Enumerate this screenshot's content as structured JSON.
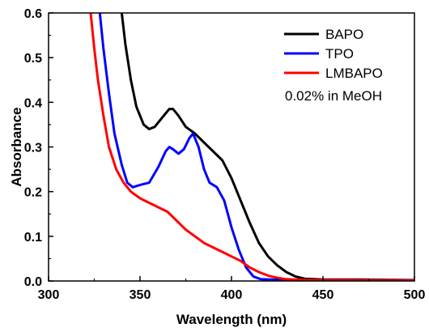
{
  "chart_data": {
    "type": "line",
    "xlabel": "Wavelength (nm)",
    "ylabel": "Absorbance",
    "xlim": [
      300,
      500
    ],
    "ylim": [
      0.0,
      0.6
    ],
    "x_ticks": [
      300,
      350,
      400,
      450,
      500
    ],
    "y_ticks": [
      0.0,
      0.1,
      0.2,
      0.3,
      0.4,
      0.5,
      0.6
    ],
    "x_tick_labels": [
      "300",
      "350",
      "400",
      "450",
      "500"
    ],
    "y_tick_labels": [
      "0.0",
      "0.1",
      "0.2",
      "0.3",
      "0.4",
      "0.5",
      "0.6"
    ],
    "grid": false,
    "legend_position": "top-right",
    "annotation": "0.02% in MeOH",
    "series": [
      {
        "name": "BAPO",
        "color": "#000000",
        "points": [
          [
            340,
            0.6
          ],
          [
            342,
            0.53
          ],
          [
            345,
            0.45
          ],
          [
            348,
            0.39
          ],
          [
            352,
            0.35
          ],
          [
            355,
            0.34
          ],
          [
            358,
            0.345
          ],
          [
            362,
            0.365
          ],
          [
            366,
            0.385
          ],
          [
            368,
            0.385
          ],
          [
            371,
            0.37
          ],
          [
            375,
            0.345
          ],
          [
            380,
            0.33
          ],
          [
            385,
            0.31
          ],
          [
            390,
            0.29
          ],
          [
            395,
            0.27
          ],
          [
            400,
            0.23
          ],
          [
            405,
            0.18
          ],
          [
            410,
            0.13
          ],
          [
            415,
            0.085
          ],
          [
            420,
            0.055
          ],
          [
            425,
            0.035
          ],
          [
            430,
            0.02
          ],
          [
            435,
            0.01
          ],
          [
            440,
            0.005
          ],
          [
            450,
            0.003
          ],
          [
            470,
            0.003
          ],
          [
            500,
            0.002
          ]
        ]
      },
      {
        "name": "TPO",
        "color": "#0000ff",
        "points": [
          [
            328,
            0.6
          ],
          [
            330,
            0.52
          ],
          [
            333,
            0.42
          ],
          [
            336,
            0.33
          ],
          [
            340,
            0.26
          ],
          [
            343,
            0.22
          ],
          [
            346,
            0.21
          ],
          [
            350,
            0.215
          ],
          [
            355,
            0.22
          ],
          [
            360,
            0.255
          ],
          [
            364,
            0.29
          ],
          [
            366,
            0.3
          ],
          [
            368,
            0.295
          ],
          [
            371,
            0.285
          ],
          [
            374,
            0.295
          ],
          [
            377,
            0.32
          ],
          [
            379,
            0.33
          ],
          [
            382,
            0.3
          ],
          [
            385,
            0.25
          ],
          [
            388,
            0.22
          ],
          [
            392,
            0.21
          ],
          [
            396,
            0.18
          ],
          [
            400,
            0.12
          ],
          [
            404,
            0.07
          ],
          [
            408,
            0.03
          ],
          [
            412,
            0.01
          ],
          [
            416,
            0.004
          ],
          [
            430,
            0.002
          ],
          [
            500,
            0.001
          ]
        ]
      },
      {
        "name": "LMBAPO",
        "color": "#ff0000",
        "points": [
          [
            323,
            0.6
          ],
          [
            325,
            0.52
          ],
          [
            327,
            0.45
          ],
          [
            330,
            0.37
          ],
          [
            333,
            0.3
          ],
          [
            337,
            0.25
          ],
          [
            341,
            0.22
          ],
          [
            345,
            0.2
          ],
          [
            350,
            0.185
          ],
          [
            355,
            0.175
          ],
          [
            360,
            0.165
          ],
          [
            365,
            0.155
          ],
          [
            370,
            0.135
          ],
          [
            375,
            0.115
          ],
          [
            380,
            0.1
          ],
          [
            385,
            0.085
          ],
          [
            390,
            0.075
          ],
          [
            395,
            0.065
          ],
          [
            400,
            0.055
          ],
          [
            405,
            0.045
          ],
          [
            410,
            0.03
          ],
          [
            415,
            0.02
          ],
          [
            420,
            0.012
          ],
          [
            425,
            0.007
          ],
          [
            430,
            0.004
          ],
          [
            440,
            0.002
          ],
          [
            500,
            0.001
          ]
        ]
      }
    ]
  }
}
